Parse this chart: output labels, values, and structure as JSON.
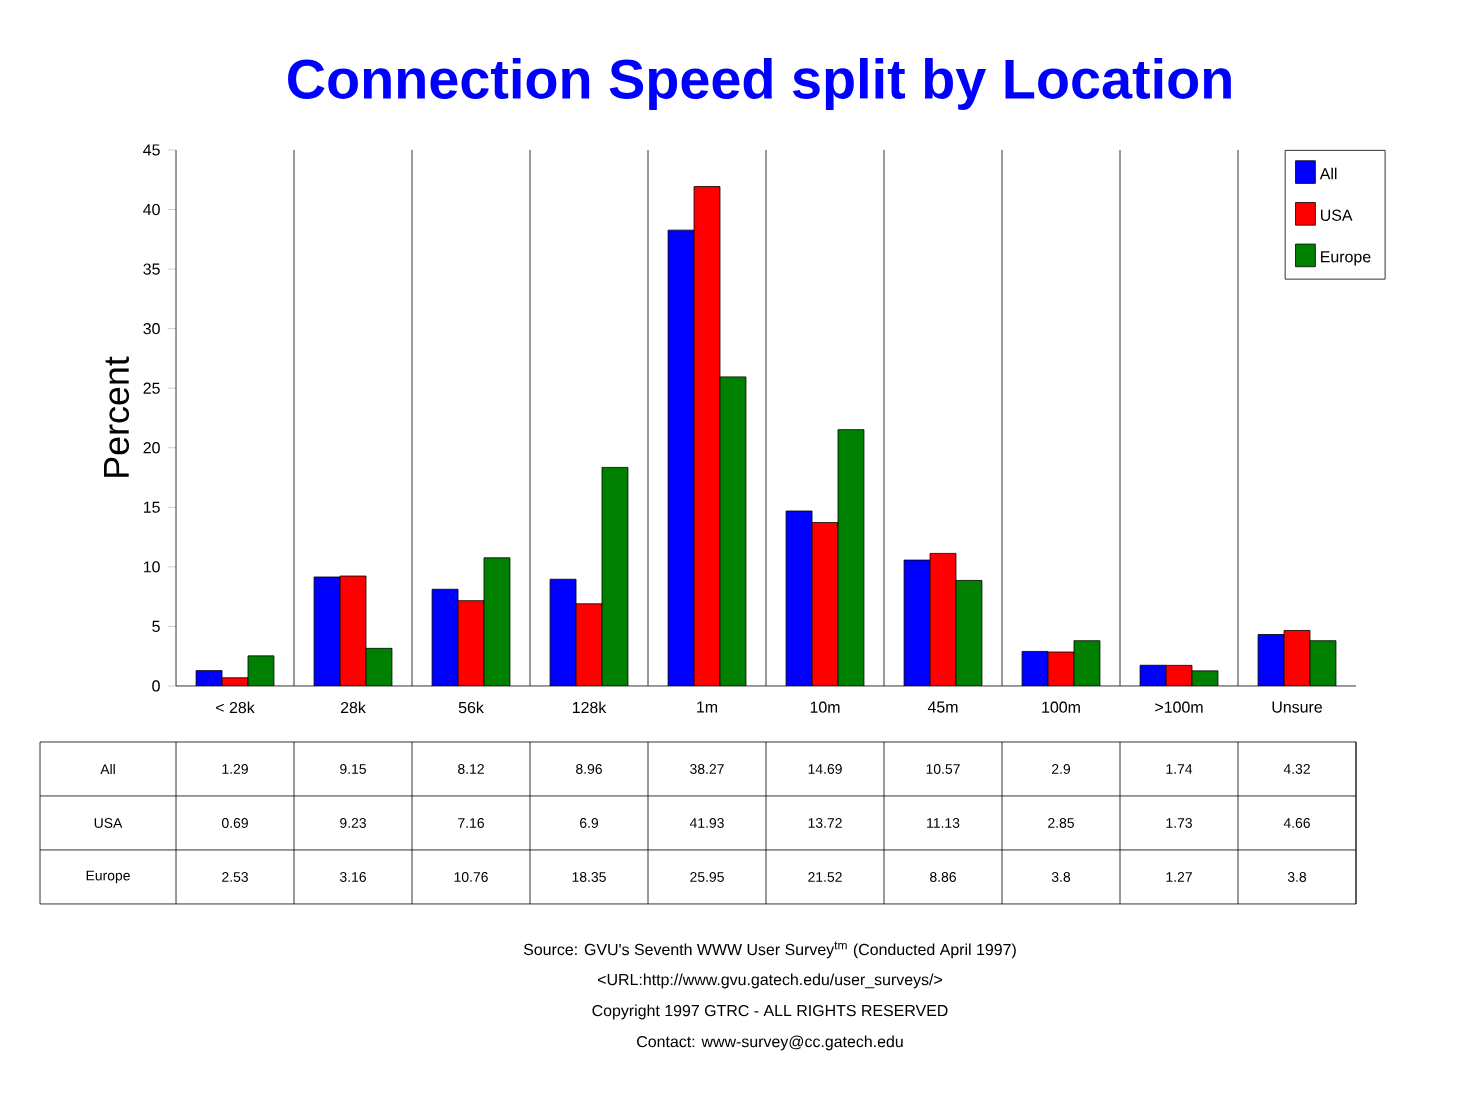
{
  "chart_data": {
    "type": "bar",
    "title": "Connection Speed split by Location",
    "ylabel": "Percent",
    "categories": [
      "< 28k",
      "28k",
      "56k",
      "128k",
      "1m",
      "10m",
      "45m",
      "100m",
      ">100m",
      "Unsure"
    ],
    "series": [
      {
        "name": "All",
        "color": "#0000ff",
        "values": [
          1.29,
          9.15,
          8.12,
          8.96,
          38.27,
          14.69,
          10.57,
          2.9,
          1.74,
          4.32
        ]
      },
      {
        "name": "USA",
        "color": "#ff0000",
        "values": [
          0.69,
          9.23,
          7.16,
          6.9,
          41.93,
          13.72,
          11.13,
          2.85,
          1.73,
          4.66
        ]
      },
      {
        "name": "Europe",
        "color": "#008000",
        "values": [
          2.53,
          3.16,
          10.76,
          18.35,
          25.95,
          21.52,
          8.86,
          3.8,
          1.27,
          3.8
        ]
      }
    ],
    "ylim": [
      0,
      45
    ],
    "yticks": [
      0,
      5,
      10,
      15,
      20,
      25,
      30,
      35,
      40,
      45
    ],
    "grid": "x",
    "legend": "top right",
    "data_labels": true,
    "annotations": [
      "Source: GVU's Seventh WWW User Survey$^{tm}$ (Conducted April 1997)",
      "<URL:http://www.gvu.gatech.edu/user_surveys/>",
      "Copyright 1997 GTRC - ALL RIGHTS RESERVED",
      "Contact: www-survey@cc.gatech.edu"
    ]
  }
}
